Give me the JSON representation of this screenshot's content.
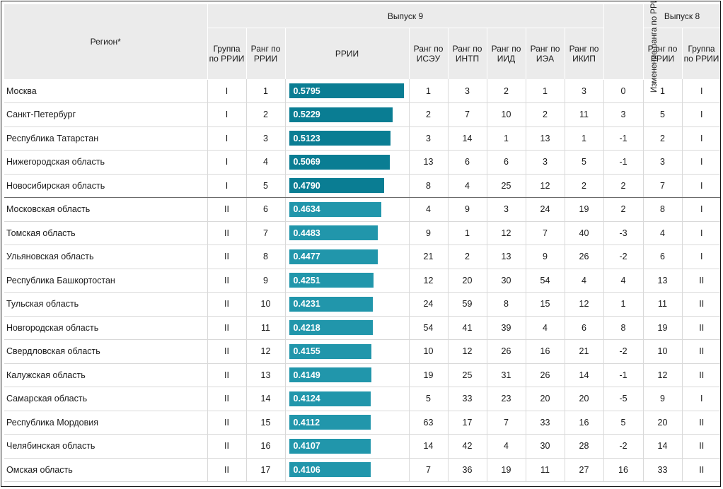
{
  "header": {
    "region": "Регион*",
    "release9": "Выпуск 9",
    "release8": "Выпуск 8",
    "group_rrii": "Группа по РРИИ",
    "rank_rrii": "Ранг по РРИИ",
    "rrii": "РРИИ",
    "rank_iseu": "Ранг по ИСЭУ",
    "rank_intp": "Ранг по ИНТП",
    "rank_iid": "Ранг по ИИД",
    "rank_iea": "Ранг по ИЭА",
    "rank_ikip": "Ранг по ИКИП",
    "rank_change": "Изменение ранга по РРИИ",
    "rank_rrii_8": "Ранг по РРИИ",
    "group_rrii_8": "Группа по РРИИ"
  },
  "bar_scale_max": 0.5795,
  "rows": [
    {
      "region": "Москва",
      "group": "I",
      "rank": "1",
      "rrii": "0.5795",
      "iseu": "1",
      "intp": "3",
      "iid": "2",
      "iea": "1",
      "ikip": "3",
      "change": "0",
      "rank8": "1",
      "group8": "I"
    },
    {
      "region": "Санкт-Петербург",
      "group": "I",
      "rank": "2",
      "rrii": "0.5229",
      "iseu": "2",
      "intp": "7",
      "iid": "10",
      "iea": "2",
      "ikip": "11",
      "change": "3",
      "rank8": "5",
      "group8": "I"
    },
    {
      "region": "Республика Татарстан",
      "group": "I",
      "rank": "3",
      "rrii": "0.5123",
      "iseu": "3",
      "intp": "14",
      "iid": "1",
      "iea": "13",
      "ikip": "1",
      "change": "-1",
      "rank8": "2",
      "group8": "I"
    },
    {
      "region": "Нижегородская область",
      "group": "I",
      "rank": "4",
      "rrii": "0.5069",
      "iseu": "13",
      "intp": "6",
      "iid": "6",
      "iea": "3",
      "ikip": "5",
      "change": "-1",
      "rank8": "3",
      "group8": "I"
    },
    {
      "region": "Новосибирская область",
      "group": "I",
      "rank": "5",
      "rrii": "0.4790",
      "iseu": "8",
      "intp": "4",
      "iid": "25",
      "iea": "12",
      "ikip": "2",
      "change": "2",
      "rank8": "7",
      "group8": "I"
    },
    {
      "region": "Московская область",
      "group": "II",
      "rank": "6",
      "rrii": "0.4634",
      "iseu": "4",
      "intp": "9",
      "iid": "3",
      "iea": "24",
      "ikip": "19",
      "change": "2",
      "rank8": "8",
      "group8": "I"
    },
    {
      "region": "Томская область",
      "group": "II",
      "rank": "7",
      "rrii": "0.4483",
      "iseu": "9",
      "intp": "1",
      "iid": "12",
      "iea": "7",
      "ikip": "40",
      "change": "-3",
      "rank8": "4",
      "group8": "I"
    },
    {
      "region": "Ульяновская область",
      "group": "II",
      "rank": "8",
      "rrii": "0.4477",
      "iseu": "21",
      "intp": "2",
      "iid": "13",
      "iea": "9",
      "ikip": "26",
      "change": "-2",
      "rank8": "6",
      "group8": "I"
    },
    {
      "region": "Республика Башкортостан",
      "group": "II",
      "rank": "9",
      "rrii": "0.4251",
      "iseu": "12",
      "intp": "20",
      "iid": "30",
      "iea": "54",
      "ikip": "4",
      "change": "4",
      "rank8": "13",
      "group8": "II"
    },
    {
      "region": "Тульская область",
      "group": "II",
      "rank": "10",
      "rrii": "0.4231",
      "iseu": "24",
      "intp": "59",
      "iid": "8",
      "iea": "15",
      "ikip": "12",
      "change": "1",
      "rank8": "11",
      "group8": "II"
    },
    {
      "region": "Новгородская область",
      "group": "II",
      "rank": "11",
      "rrii": "0.4218",
      "iseu": "54",
      "intp": "41",
      "iid": "39",
      "iea": "4",
      "ikip": "6",
      "change": "8",
      "rank8": "19",
      "group8": "II"
    },
    {
      "region": "Свердловская область",
      "group": "II",
      "rank": "12",
      "rrii": "0.4155",
      "iseu": "10",
      "intp": "12",
      "iid": "26",
      "iea": "16",
      "ikip": "21",
      "change": "-2",
      "rank8": "10",
      "group8": "II"
    },
    {
      "region": "Калужская область",
      "group": "II",
      "rank": "13",
      "rrii": "0.4149",
      "iseu": "19",
      "intp": "25",
      "iid": "31",
      "iea": "26",
      "ikip": "14",
      "change": "-1",
      "rank8": "12",
      "group8": "II"
    },
    {
      "region": "Самарская область",
      "group": "II",
      "rank": "14",
      "rrii": "0.4124",
      "iseu": "5",
      "intp": "33",
      "iid": "23",
      "iea": "20",
      "ikip": "20",
      "change": "-5",
      "rank8": "9",
      "group8": "I"
    },
    {
      "region": "Республика Мордовия",
      "group": "II",
      "rank": "15",
      "rrii": "0.4112",
      "iseu": "63",
      "intp": "17",
      "iid": "7",
      "iea": "33",
      "ikip": "16",
      "change": "5",
      "rank8": "20",
      "group8": "II"
    },
    {
      "region": "Челябинская область",
      "group": "II",
      "rank": "16",
      "rrii": "0.4107",
      "iseu": "14",
      "intp": "42",
      "iid": "4",
      "iea": "30",
      "ikip": "28",
      "change": "-2",
      "rank8": "14",
      "group8": "II"
    },
    {
      "region": "Омская область",
      "group": "II",
      "rank": "17",
      "rrii": "0.4106",
      "iseu": "7",
      "intp": "36",
      "iid": "19",
      "iea": "11",
      "ikip": "27",
      "change": "16",
      "rank8": "33",
      "group8": "II"
    }
  ]
}
